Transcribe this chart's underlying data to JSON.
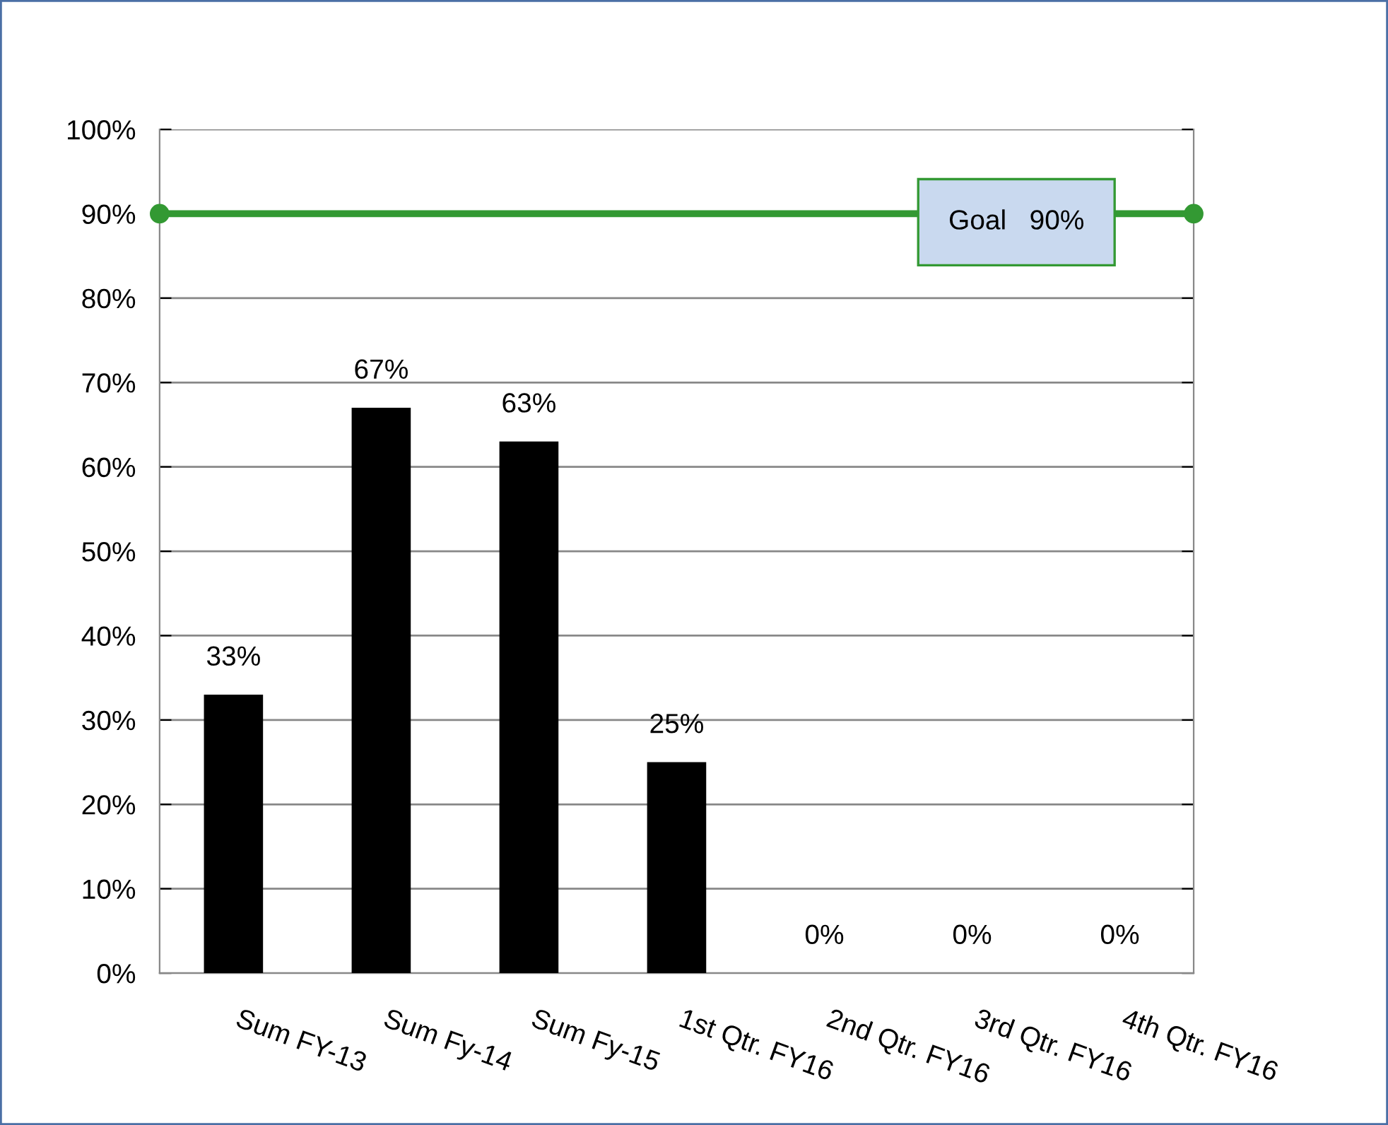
{
  "chart_data": {
    "type": "bar",
    "categories": [
      "Sum FY-13",
      "Sum Fy-14",
      "Sum Fy-15",
      "1st Qtr. FY16",
      "2nd Qtr. FY16",
      "3rd Qtr. FY16",
      "4th Qtr. FY16"
    ],
    "values": [
      33,
      67,
      63,
      25,
      0,
      0,
      0
    ],
    "color": "#000000",
    "value_labels": [
      "33%",
      "67%",
      "63%",
      "25%",
      "0%",
      "0%",
      "0%"
    ],
    "ylim": [
      0,
      100
    ],
    "yticks": [
      {
        "value": 0,
        "label": "0%"
      },
      {
        "value": 10,
        "label": "10%"
      },
      {
        "value": 20,
        "label": "20%"
      },
      {
        "value": 30,
        "label": "30%"
      },
      {
        "value": 40,
        "label": "40%"
      },
      {
        "value": 50,
        "label": "50%"
      },
      {
        "value": 60,
        "label": "60%"
      },
      {
        "value": 70,
        "label": "70%"
      },
      {
        "value": 80,
        "label": "80%"
      },
      {
        "value": 90,
        "label": "90%"
      },
      {
        "value": 100,
        "label": "100%"
      }
    ],
    "grid": "y",
    "ref_lines": [
      {
        "axis": "y",
        "value": 90,
        "label": "Goal   90%",
        "color": "#339933"
      }
    ]
  }
}
